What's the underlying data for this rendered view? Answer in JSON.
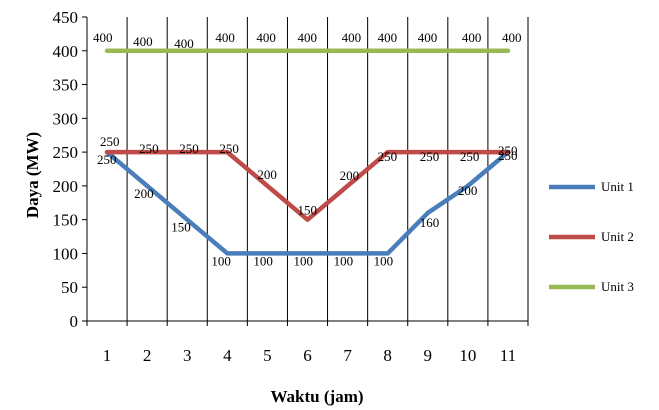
{
  "chart_data": {
    "type": "line",
    "title": "",
    "xlabel": "Waktu (jam)",
    "ylabel": "Daya (MW)",
    "x": [
      1,
      2,
      3,
      4,
      5,
      6,
      7,
      8,
      9,
      10,
      11
    ],
    "xtick_labels": [
      "1",
      "2",
      "3",
      "4",
      "5",
      "6",
      "7",
      "8",
      "9",
      "10",
      "11"
    ],
    "yticks": [
      0,
      50,
      100,
      150,
      200,
      250,
      300,
      350,
      400,
      450
    ],
    "ylim": [
      0,
      450
    ],
    "grid": "vertical",
    "legend_position": "right",
    "series": [
      {
        "name": "Unit 1",
        "color": "#4A7EBB",
        "values": [
          250,
          200,
          150,
          100,
          100,
          100,
          100,
          100,
          160,
          200,
          250
        ]
      },
      {
        "name": "Unit 2",
        "color": "#BE4B48",
        "values": [
          250,
          250,
          250,
          250,
          200,
          150,
          200,
          250,
          250,
          250,
          250
        ]
      },
      {
        "name": "Unit 3",
        "color": "#98B954",
        "values": [
          400,
          400,
          400,
          400,
          400,
          400,
          400,
          400,
          400,
          400,
          400
        ]
      }
    ]
  }
}
